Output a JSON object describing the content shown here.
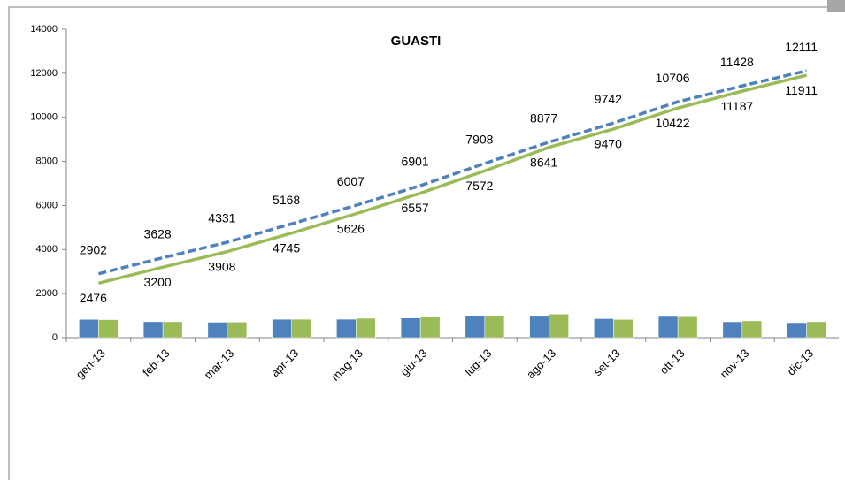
{
  "chart_data": {
    "type": "combo",
    "title": "GUASTI",
    "categories": [
      "gen-13",
      "feb-13",
      "mar-13",
      "apr-13",
      "mag-13",
      "giu-13",
      "lug-13",
      "ago-13",
      "set-13",
      "ott-13",
      "nov-13",
      "dic-13"
    ],
    "series": [
      {
        "type": "bar",
        "color": "#4f81bd",
        "values": [
          830,
          726,
          703,
          837,
          839,
          894,
          1007,
          969,
          865,
          964,
          722,
          683
        ]
      },
      {
        "type": "bar",
        "color": "#9bbb59",
        "values": [
          820,
          724,
          708,
          837,
          881,
          931,
          1015,
          1069,
          829,
          952,
          765,
          724
        ]
      },
      {
        "type": "line",
        "color": "#4f81bd",
        "dashed": true,
        "label_side": "above",
        "values": [
          2902,
          3628,
          4331,
          5168,
          6007,
          6901,
          7908,
          8877,
          9742,
          10706,
          11428,
          12111
        ]
      },
      {
        "type": "line",
        "color": "#9bbb59",
        "dashed": false,
        "label_side": "below",
        "values": [
          2476,
          3200,
          3908,
          4745,
          5626,
          6557,
          7572,
          8641,
          9470,
          10422,
          11187,
          11911
        ]
      }
    ],
    "ylim": [
      0,
      14000
    ],
    "yticks": [
      0,
      2000,
      4000,
      6000,
      8000,
      10000,
      12000,
      14000
    ],
    "grid": false
  }
}
